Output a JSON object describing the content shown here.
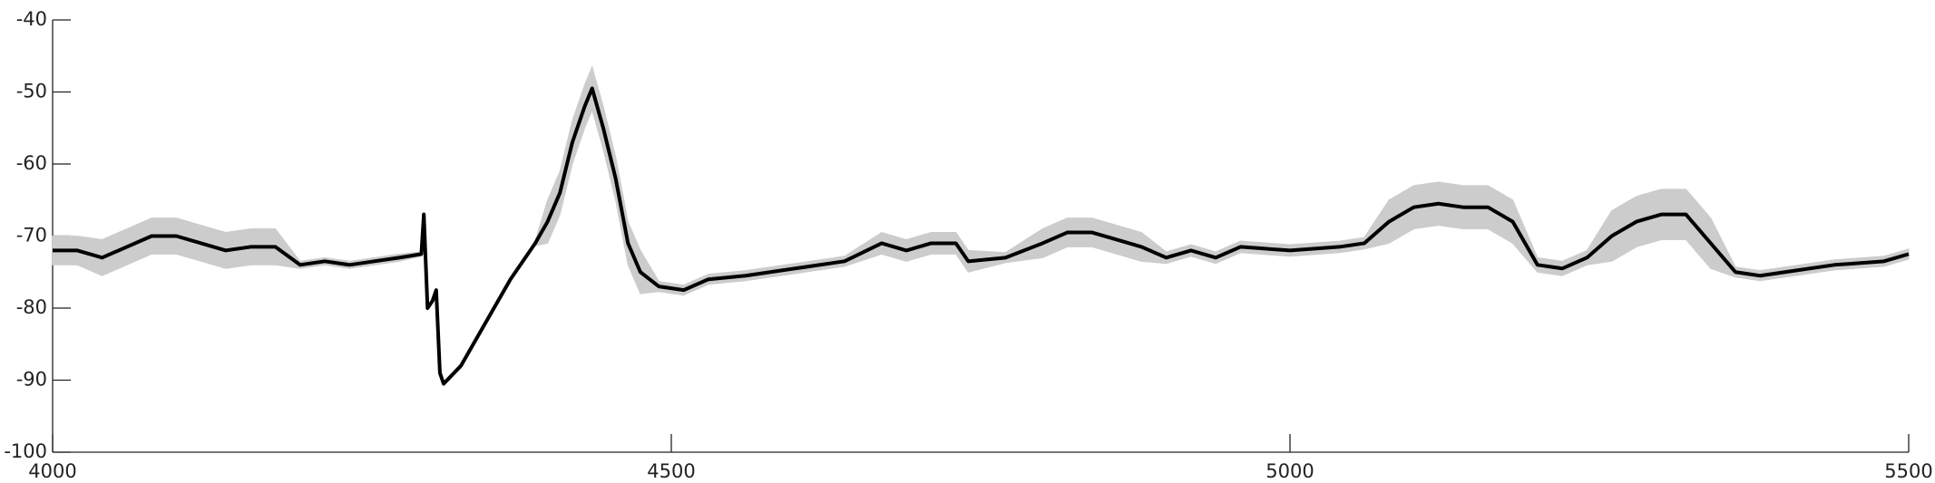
{
  "chart_data": {
    "type": "line",
    "x": [
      4000,
      4020,
      4040,
      4060,
      4080,
      4100,
      4120,
      4140,
      4160,
      4180,
      4200,
      4220,
      4240,
      4260,
      4280,
      4298,
      4300,
      4303,
      4307,
      4310,
      4313,
      4316,
      4330,
      4350,
      4370,
      4390,
      4400,
      4410,
      4420,
      4430,
      4436,
      4445,
      4455,
      4465,
      4475,
      4490,
      4510,
      4530,
      4560,
      4600,
      4640,
      4670,
      4690,
      4710,
      4730,
      4740,
      4770,
      4800,
      4820,
      4840,
      4860,
      4880,
      4900,
      4920,
      4940,
      4960,
      5000,
      5040,
      5060,
      5080,
      5100,
      5120,
      5140,
      5160,
      5180,
      5200,
      5220,
      5240,
      5260,
      5280,
      5300,
      5320,
      5340,
      5360,
      5380,
      5400,
      5440,
      5480,
      5500
    ],
    "series": [
      {
        "color": "#000000",
        "values": [
          -72,
          -72,
          -73,
          -71.5,
          -70,
          -70,
          -71,
          -72,
          -71.5,
          -71.5,
          -74,
          -73.5,
          -74,
          -73.5,
          -73,
          -72.5,
          -67,
          -80,
          -79,
          -77.5,
          -89,
          -90.5,
          -88,
          -82,
          -76,
          -71,
          -68,
          -64,
          -57,
          -52,
          -49.5,
          -55,
          -62,
          -71,
          -75,
          -77,
          -77.5,
          -76,
          -75.5,
          -74.5,
          -73.5,
          -71,
          -72,
          -71,
          -71,
          -73.5,
          -73,
          -71,
          -69.5,
          -69.5,
          -70.5,
          -71.5,
          -73,
          -72,
          -73,
          -71.5,
          -72,
          -71.5,
          -71,
          -68,
          -66,
          -65.5,
          -66,
          -66,
          -68,
          -74,
          -74.5,
          -73,
          -70,
          -68,
          -67,
          -67,
          -71,
          -75,
          -75.5,
          -75,
          -74,
          -73.5,
          -72.5
        ]
      }
    ],
    "band": {
      "color": "#cccccc",
      "upper": [
        -70,
        -70,
        -70.5,
        -69,
        -67.5,
        -67.5,
        -68.5,
        -69.5,
        -69,
        -69,
        -73.5,
        -73,
        -73.5,
        -73,
        -72.5,
        -72.2,
        -66.7,
        -79.7,
        -78.7,
        -77.2,
        -88.7,
        -90.2,
        -87.7,
        -81.7,
        -75.7,
        -70.7,
        -65,
        -61,
        -54,
        -49,
        -46.5,
        -52,
        -59,
        -68,
        -72,
        -76.3,
        -76.8,
        -75.3,
        -74.8,
        -73.8,
        -72.8,
        -69.5,
        -70.5,
        -69.5,
        -69.5,
        -72,
        -72.3,
        -69,
        -67.5,
        -67.5,
        -68.5,
        -69.5,
        -72.2,
        -71.2,
        -72.2,
        -70.7,
        -71.2,
        -70.7,
        -70.2,
        -65,
        -63,
        -62.5,
        -63,
        -63,
        -65,
        -73,
        -73.5,
        -72,
        -66.5,
        -64.5,
        -63.5,
        -63.5,
        -67.5,
        -74.3,
        -74.8,
        -74.3,
        -73.3,
        -72.8,
        -71.8
      ],
      "lower": [
        -74,
        -74,
        -75.5,
        -74,
        -72.5,
        -72.5,
        -73.5,
        -74.5,
        -74,
        -74,
        -74.5,
        -74,
        -74.5,
        -74,
        -73.5,
        -72.8,
        -67.3,
        -80.3,
        -79.3,
        -77.8,
        -89.3,
        -90.8,
        -88.3,
        -82.3,
        -76.3,
        -71.3,
        -71,
        -67,
        -60,
        -55,
        -52.5,
        -58,
        -65,
        -74,
        -78,
        -77.7,
        -78.2,
        -76.7,
        -76.2,
        -75.2,
        -74.2,
        -72.5,
        -73.5,
        -72.5,
        -72.5,
        -75,
        -73.7,
        -73,
        -71.5,
        -71.5,
        -72.5,
        -73.5,
        -73.8,
        -72.8,
        -73.8,
        -72.3,
        -72.8,
        -72.3,
        -71.8,
        -71,
        -69,
        -68.5,
        -69,
        -69,
        -71,
        -75,
        -75.5,
        -74,
        -73.5,
        -71.5,
        -70.5,
        -70.5,
        -74.5,
        -75.7,
        -76.2,
        -75.7,
        -74.7,
        -74.2,
        -73.2
      ]
    },
    "xlim": [
      4000,
      5500
    ],
    "xticks": [
      4000,
      4500,
      5000,
      5500
    ],
    "ylim": [
      -100,
      -40
    ],
    "yticks": [
      -40,
      -50,
      -60,
      -70,
      -80,
      -90,
      -100
    ]
  }
}
